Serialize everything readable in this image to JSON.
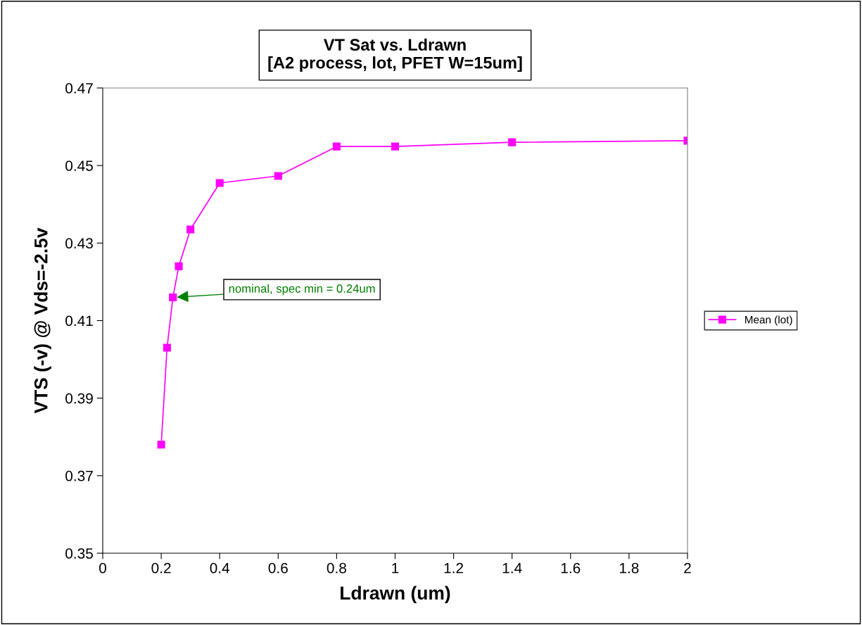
{
  "chart_data": {
    "type": "line",
    "title": "VT Sat vs. Ldrawn\n[A2 process, lot, PFET W=15um]",
    "xlabel": "Ldrawn (um)",
    "ylabel": "VTS (-v) @ Vds=-2.5v",
    "x": [
      0.2,
      0.22,
      0.24,
      0.26,
      0.3,
      0.4,
      0.6,
      0.8,
      1.0,
      1.4,
      2.0
    ],
    "series": [
      {
        "name": "Mean (lot)",
        "color": "#ff00ff",
        "values": [
          0.378,
          0.403,
          0.416,
          0.424,
          0.4335,
          0.4455,
          0.4473,
          0.4549,
          0.4549,
          0.456,
          0.4564
        ]
      }
    ],
    "xlim": [
      0,
      2
    ],
    "xticks": [
      0,
      0.2,
      0.4,
      0.6,
      0.8,
      1,
      1.2,
      1.4,
      1.6,
      1.8,
      2
    ],
    "ylim": [
      0.35,
      0.47
    ],
    "yticks": [
      0.35,
      0.37,
      0.39,
      0.41,
      0.43,
      0.45,
      0.47
    ],
    "annotations": [
      {
        "text": "nominal, spec min = 0.24um",
        "x": 0.24,
        "y": 0.416
      }
    ],
    "marker": "square",
    "line_style": "solid",
    "grid": false,
    "legend": "right"
  }
}
